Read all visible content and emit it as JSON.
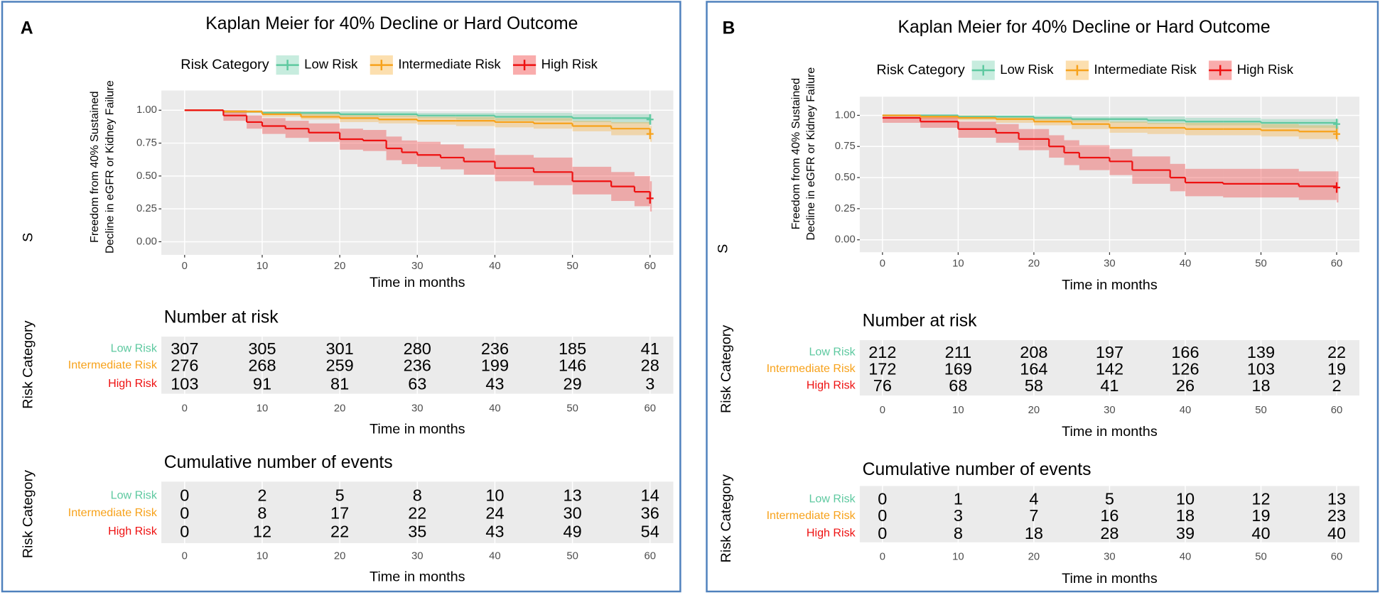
{
  "chart_data": [
    {
      "type": "kaplan-meier",
      "panel": "A",
      "title": "Kaplan Meier for 40% Decline or Hard Outcome",
      "legend_title": "Risk Category",
      "ylabel": [
        "Freedom from 40% Sustained",
        "Decline in eGFR or Kidney Failure"
      ],
      "y_axis_fragment": "S",
      "xlabel": "Time in months",
      "xlim": [
        -3,
        63
      ],
      "xticks": [
        0,
        10,
        20,
        30,
        40,
        50,
        60
      ],
      "ylim": [
        -0.1,
        1.15
      ],
      "yticks": [
        {
          "value": 0,
          "label": "0.00"
        },
        {
          "value": 0.25,
          "label": "0.25"
        },
        {
          "value": 0.5,
          "label": "0.50"
        },
        {
          "value": 0.75,
          "label": "0.75"
        },
        {
          "value": 1,
          "label": "1.00"
        }
      ],
      "grid": true,
      "series": [
        {
          "name": "Low Risk",
          "color": "#5ec9a0",
          "x": [
            0,
            5,
            10,
            15,
            20,
            25,
            30,
            35,
            40,
            45,
            50,
            55,
            60
          ],
          "values": [
            1,
            0.99,
            0.98,
            0.98,
            0.97,
            0.97,
            0.96,
            0.96,
            0.95,
            0.95,
            0.94,
            0.94,
            0.93
          ],
          "lower": [
            1,
            0.98,
            0.97,
            0.96,
            0.95,
            0.95,
            0.94,
            0.93,
            0.92,
            0.92,
            0.91,
            0.9,
            0.89
          ],
          "upper": [
            1,
            1,
            0.99,
            0.99,
            0.99,
            0.99,
            0.98,
            0.98,
            0.98,
            0.98,
            0.97,
            0.97,
            0.97
          ]
        },
        {
          "name": "Intermediate Risk",
          "color": "#f7a21b",
          "x": [
            0,
            5,
            10,
            15,
            20,
            25,
            30,
            35,
            40,
            45,
            50,
            55,
            60
          ],
          "values": [
            1,
            0.99,
            0.97,
            0.95,
            0.94,
            0.93,
            0.92,
            0.92,
            0.91,
            0.9,
            0.88,
            0.86,
            0.82
          ],
          "lower": [
            1,
            0.98,
            0.95,
            0.93,
            0.91,
            0.9,
            0.89,
            0.88,
            0.87,
            0.86,
            0.84,
            0.81,
            0.76
          ],
          "upper": [
            1,
            1,
            0.99,
            0.98,
            0.97,
            0.96,
            0.95,
            0.95,
            0.94,
            0.94,
            0.92,
            0.91,
            0.88
          ]
        },
        {
          "name": "High Risk",
          "color": "#ee1111",
          "x": [
            0,
            3,
            5,
            8,
            10,
            13,
            16,
            20,
            23,
            26,
            28,
            30,
            33,
            36,
            40,
            45,
            50,
            55,
            58,
            60
          ],
          "values": [
            1,
            1,
            0.96,
            0.91,
            0.88,
            0.86,
            0.83,
            0.78,
            0.77,
            0.71,
            0.68,
            0.66,
            0.64,
            0.61,
            0.56,
            0.53,
            0.46,
            0.42,
            0.38,
            0.33
          ],
          "lower": [
            1,
            1,
            0.92,
            0.86,
            0.82,
            0.79,
            0.76,
            0.7,
            0.69,
            0.62,
            0.59,
            0.57,
            0.55,
            0.51,
            0.46,
            0.43,
            0.36,
            0.31,
            0.27,
            0.23
          ],
          "upper": [
            1,
            1,
            1,
            0.96,
            0.94,
            0.92,
            0.9,
            0.86,
            0.85,
            0.8,
            0.77,
            0.76,
            0.74,
            0.71,
            0.66,
            0.64,
            0.57,
            0.53,
            0.5,
            0.46
          ]
        }
      ],
      "number_at_risk": {
        "title": "Number at risk",
        "ylabel": "Risk Category",
        "rows": [
          [
            307,
            305,
            301,
            280,
            236,
            185,
            41
          ],
          [
            276,
            268,
            259,
            236,
            199,
            146,
            28
          ],
          [
            103,
            91,
            81,
            63,
            43,
            29,
            3
          ]
        ]
      },
      "cumulative_events": {
        "title": "Cumulative number of events",
        "ylabel": "Risk Category",
        "rows": [
          [
            0,
            2,
            5,
            8,
            10,
            13,
            14
          ],
          [
            0,
            8,
            17,
            22,
            24,
            30,
            36
          ],
          [
            0,
            12,
            22,
            35,
            43,
            49,
            54
          ]
        ]
      }
    },
    {
      "type": "kaplan-meier",
      "panel": "B",
      "title": "Kaplan Meier for 40% Decline or Hard Outcome",
      "legend_title": "Risk Category",
      "ylabel": [
        "Freedom from 40% Sustained",
        "Decline in eGFR or Kidney Failure"
      ],
      "y_axis_fragment": "S",
      "xlabel": "Time in months",
      "xlim": [
        -3,
        63
      ],
      "xticks": [
        0,
        10,
        20,
        30,
        40,
        50,
        60
      ],
      "ylim": [
        -0.1,
        1.15
      ],
      "yticks": [
        {
          "value": 0,
          "label": "0.00"
        },
        {
          "value": 0.25,
          "label": "0.25"
        },
        {
          "value": 0.5,
          "label": "0.50"
        },
        {
          "value": 0.75,
          "label": "0.75"
        },
        {
          "value": 1,
          "label": "1.00"
        }
      ],
      "grid": true,
      "series": [
        {
          "name": "Low Risk",
          "color": "#5ec9a0",
          "x": [
            0,
            5,
            10,
            15,
            20,
            25,
            30,
            35,
            40,
            45,
            50,
            55,
            60
          ],
          "values": [
            1,
            1,
            0.99,
            0.99,
            0.98,
            0.97,
            0.97,
            0.96,
            0.95,
            0.95,
            0.94,
            0.94,
            0.93
          ],
          "lower": [
            1,
            0.99,
            0.97,
            0.97,
            0.96,
            0.95,
            0.94,
            0.93,
            0.92,
            0.92,
            0.9,
            0.9,
            0.89
          ],
          "upper": [
            1,
            1,
            1,
            1,
            1,
            0.99,
            0.99,
            0.99,
            0.98,
            0.98,
            0.97,
            0.97,
            0.97
          ]
        },
        {
          "name": "Intermediate Risk",
          "color": "#f7a21b",
          "x": [
            0,
            5,
            10,
            15,
            20,
            25,
            30,
            35,
            40,
            45,
            50,
            55,
            60
          ],
          "values": [
            1,
            0.99,
            0.98,
            0.97,
            0.95,
            0.93,
            0.9,
            0.9,
            0.89,
            0.89,
            0.88,
            0.87,
            0.85
          ],
          "lower": [
            1,
            0.97,
            0.96,
            0.94,
            0.92,
            0.89,
            0.86,
            0.85,
            0.84,
            0.84,
            0.83,
            0.81,
            0.79
          ],
          "upper": [
            1,
            1,
            1,
            0.99,
            0.98,
            0.97,
            0.95,
            0.94,
            0.94,
            0.94,
            0.93,
            0.92,
            0.91
          ]
        },
        {
          "name": "High Risk",
          "color": "#ee1111",
          "x": [
            0,
            5,
            10,
            15,
            18,
            22,
            24,
            26,
            30,
            33,
            38,
            40,
            45,
            50,
            55,
            60
          ],
          "values": [
            0.98,
            0.95,
            0.89,
            0.86,
            0.81,
            0.75,
            0.7,
            0.66,
            0.63,
            0.56,
            0.5,
            0.46,
            0.45,
            0.45,
            0.43,
            0.42
          ],
          "lower": [
            0.94,
            0.9,
            0.82,
            0.78,
            0.72,
            0.66,
            0.6,
            0.56,
            0.52,
            0.45,
            0.39,
            0.35,
            0.34,
            0.34,
            0.32,
            0.3
          ],
          "upper": [
            1,
            0.99,
            0.95,
            0.93,
            0.89,
            0.84,
            0.8,
            0.76,
            0.73,
            0.67,
            0.61,
            0.57,
            0.57,
            0.57,
            0.55,
            0.55
          ]
        }
      ],
      "number_at_risk": {
        "title": "Number at risk",
        "ylabel": "Risk Category",
        "rows": [
          [
            212,
            211,
            208,
            197,
            166,
            139,
            22
          ],
          [
            172,
            169,
            164,
            142,
            126,
            103,
            19
          ],
          [
            76,
            68,
            58,
            41,
            26,
            18,
            2
          ]
        ]
      },
      "cumulative_events": {
        "title": "Cumulative number of events",
        "ylabel": "Risk Category",
        "rows": [
          [
            0,
            1,
            4,
            5,
            10,
            12,
            13
          ],
          [
            0,
            3,
            7,
            16,
            18,
            19,
            23
          ],
          [
            0,
            8,
            18,
            28,
            39,
            40,
            40
          ]
        ]
      }
    }
  ]
}
